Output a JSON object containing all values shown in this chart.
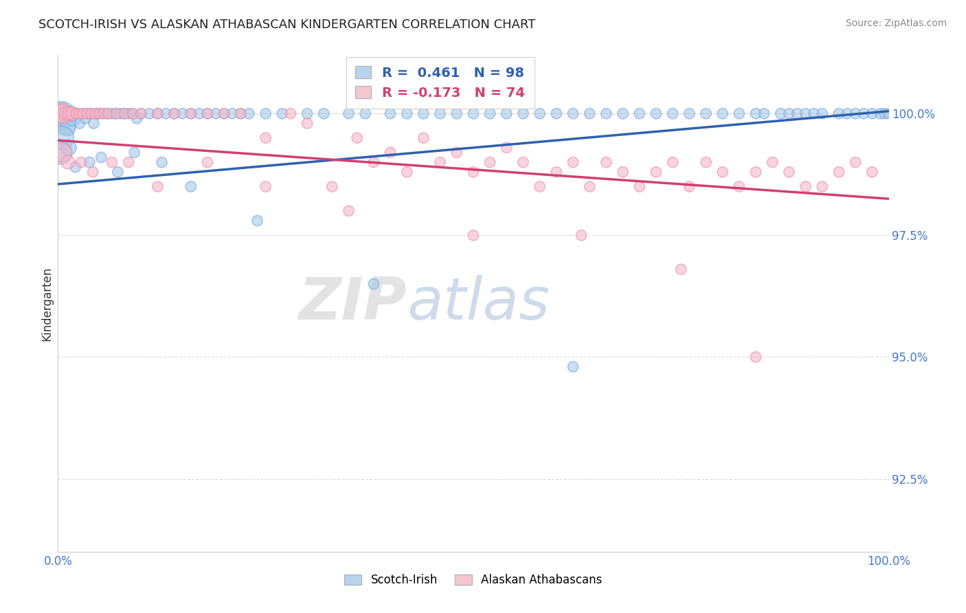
{
  "title": "SCOTCH-IRISH VS ALASKAN ATHABASCAN KINDERGARTEN CORRELATION CHART",
  "source_text": "Source: ZipAtlas.com",
  "ylabel": "Kindergarten",
  "xlim": [
    0.0,
    100.0
  ],
  "ylim": [
    91.0,
    101.2
  ],
  "yticks": [
    92.5,
    95.0,
    97.5,
    100.0
  ],
  "ytick_labels": [
    "92.5%",
    "95.0%",
    "97.5%",
    "100.0%"
  ],
  "xticks": [
    0.0,
    100.0
  ],
  "xtick_labels": [
    "0.0%",
    "100.0%"
  ],
  "blue_R": 0.461,
  "blue_N": 98,
  "pink_R": -0.173,
  "pink_N": 74,
  "blue_color": "#a8c8e8",
  "pink_color": "#f4b8c8",
  "blue_edge_color": "#7aabe0",
  "pink_edge_color": "#ee90aa",
  "blue_line_color": "#3060b0",
  "pink_line_color": "#d04070",
  "legend_label_blue": "Scotch-Irish",
  "legend_label_pink": "Alaskan Athabascans",
  "watermark_zip": "ZIP",
  "watermark_atlas": "atlas",
  "blue_line_y0": 98.55,
  "blue_line_y1": 100.05,
  "pink_line_y0": 99.45,
  "pink_line_y1": 98.25,
  "blue_scatter_x": [
    0.2,
    0.4,
    0.6,
    0.8,
    1.0,
    1.2,
    1.5,
    1.8,
    2.0,
    2.3,
    2.6,
    3.0,
    3.3,
    3.6,
    4.0,
    4.3,
    4.7,
    5.0,
    5.5,
    6.0,
    6.5,
    7.0,
    7.5,
    8.0,
    8.5,
    9.0,
    9.5,
    10.0,
    11.0,
    12.0,
    13.0,
    14.0,
    15.0,
    16.0,
    17.0,
    18.0,
    19.0,
    20.0,
    21.0,
    22.0,
    23.0,
    25.0,
    27.0,
    30.0,
    32.0,
    35.0,
    37.0,
    40.0,
    42.0,
    44.0,
    46.0,
    48.0,
    50.0,
    52.0,
    54.0,
    56.0,
    58.0,
    60.0,
    62.0,
    64.0,
    66.0,
    68.0,
    70.0,
    72.0,
    74.0,
    76.0,
    78.0,
    80.0,
    82.0,
    84.0,
    85.0,
    87.0,
    88.0,
    89.0,
    90.0,
    91.0,
    92.0,
    94.0,
    95.0,
    96.0,
    97.0,
    98.0,
    99.0,
    99.5,
    100.0,
    0.3,
    0.5,
    1.3,
    2.1,
    3.8,
    5.2,
    7.2,
    9.2,
    12.5,
    16.0,
    24.0,
    38.0,
    62.0
  ],
  "blue_scatter_y": [
    100.0,
    99.9,
    100.0,
    99.8,
    100.0,
    99.7,
    100.0,
    99.9,
    100.0,
    100.0,
    99.8,
    100.0,
    99.9,
    100.0,
    100.0,
    99.8,
    100.0,
    100.0,
    100.0,
    100.0,
    100.0,
    100.0,
    100.0,
    100.0,
    100.0,
    100.0,
    99.9,
    100.0,
    100.0,
    100.0,
    100.0,
    100.0,
    100.0,
    100.0,
    100.0,
    100.0,
    100.0,
    100.0,
    100.0,
    100.0,
    100.0,
    100.0,
    100.0,
    100.0,
    100.0,
    100.0,
    100.0,
    100.0,
    100.0,
    100.0,
    100.0,
    100.0,
    100.0,
    100.0,
    100.0,
    100.0,
    100.0,
    100.0,
    100.0,
    100.0,
    100.0,
    100.0,
    100.0,
    100.0,
    100.0,
    100.0,
    100.0,
    100.0,
    100.0,
    100.0,
    100.0,
    100.0,
    100.0,
    100.0,
    100.0,
    100.0,
    100.0,
    100.0,
    100.0,
    100.0,
    100.0,
    100.0,
    100.0,
    100.0,
    100.0,
    99.2,
    99.5,
    99.3,
    98.9,
    99.0,
    99.1,
    98.8,
    99.2,
    99.0,
    98.5,
    97.8,
    96.5,
    94.8
  ],
  "pink_scatter_x": [
    0.3,
    0.6,
    1.0,
    1.4,
    1.8,
    2.2,
    2.6,
    3.0,
    3.5,
    4.0,
    4.5,
    5.0,
    5.5,
    6.0,
    7.0,
    8.0,
    9.0,
    10.0,
    12.0,
    14.0,
    16.0,
    18.0,
    20.0,
    22.0,
    25.0,
    28.0,
    30.0,
    33.0,
    36.0,
    38.0,
    40.0,
    42.0,
    44.0,
    46.0,
    48.0,
    50.0,
    52.0,
    54.0,
    56.0,
    58.0,
    60.0,
    62.0,
    64.0,
    66.0,
    68.0,
    70.0,
    72.0,
    74.0,
    76.0,
    78.0,
    80.0,
    82.0,
    84.0,
    86.0,
    88.0,
    90.0,
    92.0,
    94.0,
    96.0,
    98.0,
    0.5,
    1.2,
    2.8,
    4.2,
    6.5,
    8.5,
    12.0,
    18.0,
    25.0,
    35.0,
    50.0,
    63.0,
    75.0,
    84.0
  ],
  "pink_scatter_y": [
    100.0,
    100.0,
    100.0,
    100.0,
    100.0,
    100.0,
    100.0,
    100.0,
    100.0,
    100.0,
    100.0,
    100.0,
    100.0,
    100.0,
    100.0,
    100.0,
    100.0,
    100.0,
    100.0,
    100.0,
    100.0,
    100.0,
    100.0,
    100.0,
    99.5,
    100.0,
    99.8,
    98.5,
    99.5,
    99.0,
    99.2,
    98.8,
    99.5,
    99.0,
    99.2,
    98.8,
    99.0,
    99.3,
    99.0,
    98.5,
    98.8,
    99.0,
    98.5,
    99.0,
    98.8,
    98.5,
    98.8,
    99.0,
    98.5,
    99.0,
    98.8,
    98.5,
    98.8,
    99.0,
    98.8,
    98.5,
    98.5,
    98.8,
    99.0,
    98.8,
    99.2,
    99.0,
    99.0,
    98.8,
    99.0,
    99.0,
    98.5,
    99.0,
    98.5,
    98.0,
    97.5,
    97.5,
    96.8,
    95.0
  ]
}
